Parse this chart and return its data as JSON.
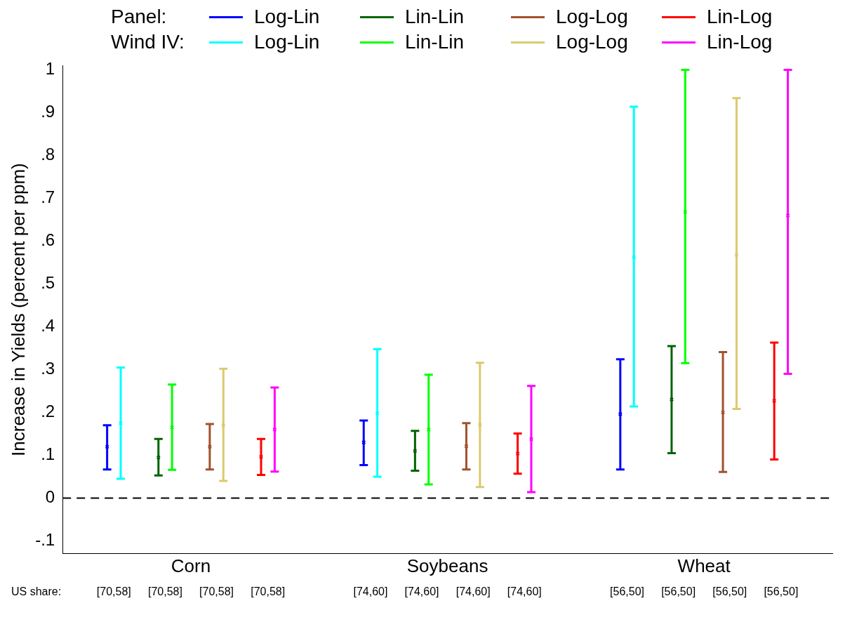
{
  "chart_data": {
    "type": "scatter",
    "ylabel": "Increase in Yields (percent per ppm)",
    "categories": [
      "Corn",
      "Soybeans",
      "Wheat"
    ],
    "ylim": [
      -0.13,
      1.01
    ],
    "yticks": [
      {
        "value": -0.1,
        "label": "-.1"
      },
      0,
      {
        "value": 0.1,
        "label": ".1"
      },
      {
        "value": 0.2,
        "label": ".2"
      },
      {
        "value": 0.3,
        "label": ".3"
      },
      {
        "value": 0.4,
        "label": ".4"
      },
      {
        "value": 0.5,
        "label": ".5"
      },
      {
        "value": 0.6,
        "label": ".6"
      },
      {
        "value": 0.7,
        "label": ".7"
      },
      {
        "value": 0.8,
        "label": ".8"
      },
      {
        "value": 0.9,
        "label": ".9"
      },
      1
    ],
    "grid": false,
    "legend": "top",
    "marker": "cross",
    "series": [
      {
        "name": "Log-Lin",
        "color": "#0000ff",
        "values": [
          0.12,
          0.13,
          0.196
        ],
        "errors": [
          [
            0.067,
            0.17
          ],
          [
            0.077,
            0.181
          ],
          [
            0.067,
            0.324
          ]
        ]
      },
      {
        "name": "Log-Lin",
        "color": "#00ffff",
        "values": [
          0.175,
          0.198,
          0.562
        ],
        "errors": [
          [
            0.045,
            0.305
          ],
          [
            0.05,
            0.348
          ],
          [
            0.214,
            0.914
          ]
        ]
      },
      {
        "name": "Lin-Lin",
        "color": "#006400",
        "values": [
          0.095,
          0.11,
          0.23
        ],
        "errors": [
          [
            0.053,
            0.138
          ],
          [
            0.064,
            0.157
          ],
          [
            0.105,
            0.355
          ]
        ]
      },
      {
        "name": "Lin-Lin",
        "color": "#00ff00",
        "values": [
          0.165,
          0.16,
          0.668
        ],
        "errors": [
          [
            0.066,
            0.265
          ],
          [
            0.032,
            0.288
          ],
          [
            0.315,
            1.0
          ]
        ]
      },
      {
        "name": "Log-Log",
        "color": "#a0522d",
        "values": [
          0.12,
          0.121,
          0.2
        ],
        "errors": [
          [
            0.067,
            0.173
          ],
          [
            0.067,
            0.175
          ],
          [
            0.061,
            0.341
          ]
        ]
      },
      {
        "name": "Log-Log",
        "color": "#daca6e",
        "values": [
          0.17,
          0.171,
          0.568
        ],
        "errors": [
          [
            0.04,
            0.302
          ],
          [
            0.026,
            0.316
          ],
          [
            0.208,
            0.934
          ]
        ]
      },
      {
        "name": "Lin-Log",
        "color": "#ff0000",
        "values": [
          0.096,
          0.104,
          0.227
        ],
        "errors": [
          [
            0.054,
            0.138
          ],
          [
            0.057,
            0.151
          ],
          [
            0.09,
            0.363
          ]
        ]
      },
      {
        "name": "Lin-Log",
        "color": "#ff00ff",
        "values": [
          0.16,
          0.138,
          0.66
        ],
        "errors": [
          [
            0.062,
            0.258
          ],
          [
            0.014,
            0.262
          ],
          [
            0.29,
            1.0
          ]
        ]
      }
    ],
    "ref_lines": [
      {
        "axis": "y",
        "value": 0,
        "color": "#000000",
        "line_style": "dashed"
      }
    ],
    "annotations": [
      "Panel:",
      "Wind IV:",
      "US share:",
      "[70,58]",
      "[70,58]",
      "[70,58]",
      "[70,58]",
      "[74,60]",
      "[74,60]",
      "[74,60]",
      "[74,60]",
      "[56,50]",
      "[56,50]",
      "[56,50]",
      "[56,50]"
    ]
  }
}
